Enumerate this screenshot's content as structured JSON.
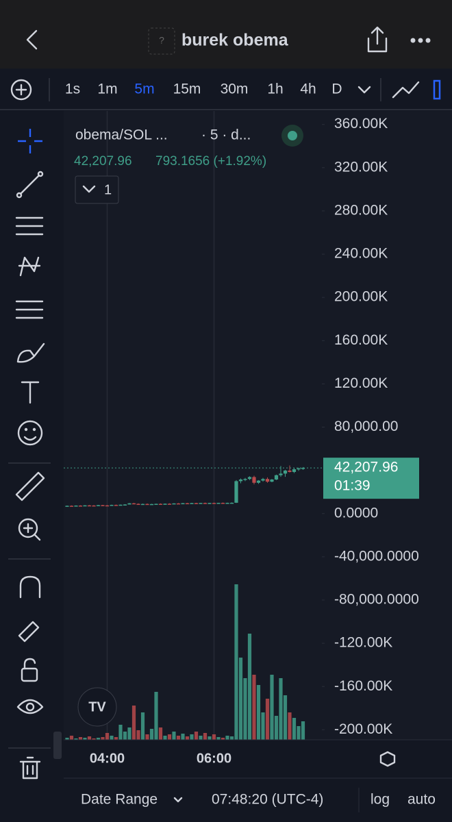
{
  "header": {
    "title": "burek obema",
    "icon": "?"
  },
  "toolbar": {
    "intervals": [
      "1s",
      "1m",
      "5m",
      "15m",
      "30m",
      "1h",
      "4h",
      "D"
    ],
    "active": "5m"
  },
  "legend": {
    "symbol": "obema/SOL ...",
    "meta": "· 5 · d...",
    "price": "42,207.96",
    "change": "793.1656 (+1.92%)",
    "count": "1"
  },
  "footer": {
    "date_range": "Date Range",
    "time": "07:48:20 (UTC-4)",
    "log": "log",
    "auto": "auto"
  },
  "chart_data": {
    "type": "candlestick",
    "up_color": "#3f9e88",
    "down_color": "#b94a4c",
    "ylim": [
      -215000,
      375000
    ],
    "yticks": [
      {
        "value": 360000,
        "label": "360.00K"
      },
      {
        "value": 320000,
        "label": "320.00K"
      },
      {
        "value": 280000,
        "label": "280.00K"
      },
      {
        "value": 240000,
        "label": "240.00K"
      },
      {
        "value": 200000,
        "label": "200.00K"
      },
      {
        "value": 160000,
        "label": "160.00K"
      },
      {
        "value": 120000,
        "label": "120.00K"
      },
      {
        "value": 80000,
        "label": "80,000.00"
      },
      {
        "value": 0,
        "label": "0.0000"
      },
      {
        "value": -40000,
        "label": "-40,000.0000"
      },
      {
        "value": -80000,
        "label": "-80,000.0000"
      },
      {
        "value": -120000,
        "label": "-120.00K"
      },
      {
        "value": -160000,
        "label": "-160.00K"
      },
      {
        "value": -200000,
        "label": "-200.00K"
      }
    ],
    "xticks": [
      {
        "value": 9,
        "label": "04:00"
      },
      {
        "value": 33,
        "label": "06:00"
      }
    ],
    "last_price": {
      "value": 42207.96,
      "label": "42,207.96"
    },
    "countdown": "01:39",
    "ohlc": [
      [
        7000,
        7400,
        6800,
        7200
      ],
      [
        7200,
        7500,
        7000,
        7100
      ],
      [
        7100,
        7600,
        6900,
        7400
      ],
      [
        7400,
        7700,
        7100,
        7300
      ],
      [
        7300,
        7800,
        7200,
        7600
      ],
      [
        7600,
        7900,
        7300,
        7500
      ],
      [
        7500,
        7800,
        7200,
        7400
      ],
      [
        7400,
        8000,
        7300,
        7800
      ],
      [
        7800,
        8100,
        7500,
        7600
      ],
      [
        7600,
        7900,
        7300,
        7500
      ],
      [
        7500,
        8200,
        7400,
        8000
      ],
      [
        8000,
        8300,
        7700,
        7800
      ],
      [
        7800,
        8400,
        7600,
        8200
      ],
      [
        8200,
        8600,
        8000,
        8400
      ],
      [
        8400,
        9800,
        8300,
        9500
      ],
      [
        9500,
        9900,
        8800,
        9000
      ],
      [
        9000,
        9400,
        8500,
        8700
      ],
      [
        8700,
        9200,
        8300,
        8900
      ],
      [
        8900,
        9300,
        8400,
        8600
      ],
      [
        8600,
        9000,
        8300,
        8800
      ],
      [
        8800,
        9200,
        8500,
        9000
      ],
      [
        9000,
        9400,
        8700,
        8800
      ],
      [
        8800,
        9300,
        8600,
        9100
      ],
      [
        9100,
        9500,
        8800,
        9000
      ],
      [
        9000,
        9600,
        8900,
        9400
      ],
      [
        9400,
        9700,
        9000,
        9200
      ],
      [
        9200,
        9800,
        9000,
        9600
      ],
      [
        9600,
        9900,
        9300,
        9400
      ],
      [
        9400,
        9900,
        9200,
        9700
      ],
      [
        9700,
        10000,
        9400,
        9500
      ],
      [
        9500,
        9900,
        9300,
        9800
      ],
      [
        9800,
        10100,
        9500,
        9600
      ],
      [
        9600,
        10000,
        9400,
        9800
      ],
      [
        9800,
        10100,
        9500,
        9700
      ],
      [
        9700,
        10000,
        9500,
        9900
      ],
      [
        9900,
        10200,
        9600,
        9700
      ],
      [
        9700,
        10100,
        9500,
        9900
      ],
      [
        9900,
        10300,
        9700,
        10000
      ],
      [
        10000,
        31000,
        9800,
        30000
      ],
      [
        30000,
        32500,
        28000,
        31500
      ],
      [
        31500,
        33000,
        30000,
        32000
      ],
      [
        32000,
        34500,
        31000,
        33800
      ],
      [
        33800,
        35000,
        27000,
        28500
      ],
      [
        28500,
        31000,
        27500,
        30500
      ],
      [
        30500,
        33000,
        29500,
        32000
      ],
      [
        32000,
        33500,
        28500,
        29500
      ],
      [
        29500,
        32000,
        29000,
        31500
      ],
      [
        31500,
        36000,
        31000,
        35500
      ],
      [
        35500,
        44000,
        34000,
        37000
      ],
      [
        37000,
        40500,
        34000,
        39800
      ],
      [
        39800,
        44500,
        38000,
        38500
      ],
      [
        38500,
        42000,
        37500,
        41000
      ],
      [
        41000,
        42500,
        39500,
        41800
      ],
      [
        41800,
        43000,
        40500,
        42207.96
      ]
    ],
    "volume": [
      3,
      6,
      2,
      4,
      3,
      5,
      2,
      3,
      4,
      10,
      6,
      4,
      22,
      12,
      18,
      50,
      14,
      40,
      8,
      16,
      70,
      18,
      6,
      8,
      12,
      6,
      9,
      5,
      8,
      12,
      6,
      10,
      5,
      8,
      4,
      3,
      6,
      5,
      227,
      120,
      90,
      155,
      95,
      80,
      40,
      60,
      95,
      35,
      90,
      65,
      40,
      32,
      20,
      27
    ]
  }
}
